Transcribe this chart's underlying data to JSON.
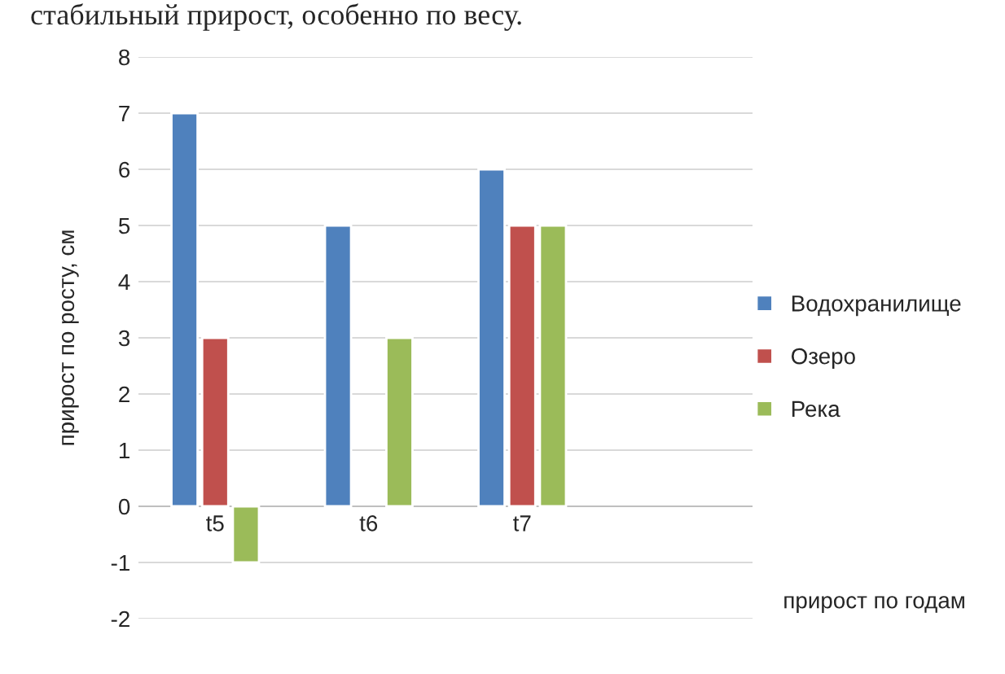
{
  "chart_data": {
    "type": "bar",
    "ylabel": "прирост по росту, см",
    "xlabel": "прирост по годам",
    "annotations": [
      "стабильный прирост, особенно по весу."
    ],
    "categories": [
      "t5",
      "t6",
      "t7",
      null
    ],
    "series": [
      {
        "name": "Водохранилище",
        "color": "#4f81bd",
        "values": [
          7,
          5,
          6,
          null
        ]
      },
      {
        "name": "Озеро",
        "color": "#c0504d",
        "values": [
          3,
          null,
          5,
          null
        ]
      },
      {
        "name": "Река",
        "color": "#9bbb59",
        "values": [
          -1,
          3,
          5,
          null
        ]
      }
    ],
    "ylim": [
      -2,
      8
    ],
    "yticks": [
      -2,
      -1,
      0,
      1,
      2,
      3,
      4,
      5,
      6,
      7,
      8
    ],
    "grid": "y",
    "legend": "right"
  }
}
